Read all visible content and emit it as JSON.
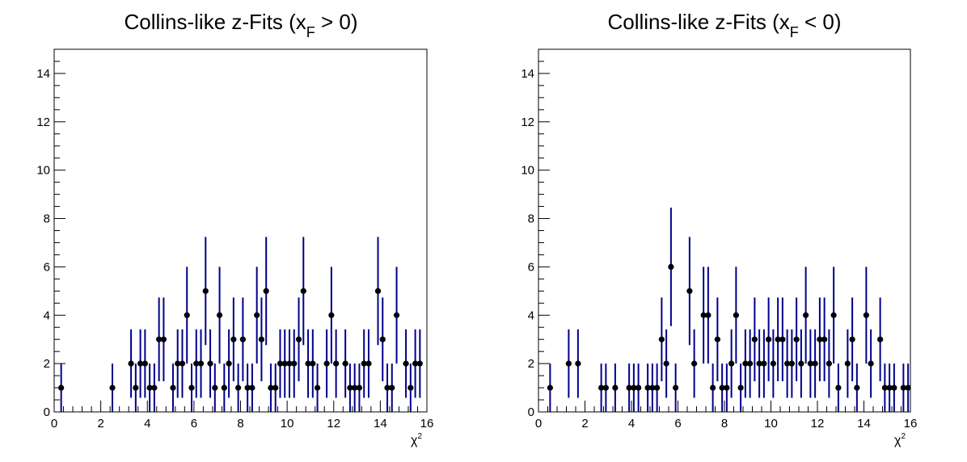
{
  "chart_data": [
    {
      "type": "scatter",
      "title_main": "Collins-like z-Fits (x",
      "title_sub": "F",
      "title_rest": " > 0)",
      "xlabel_main": "χ",
      "xlabel_sup": "2",
      "ylabel": "",
      "xlim": [
        0,
        16
      ],
      "ylim": [
        0,
        15
      ],
      "xticks": [
        "0",
        "2",
        "4",
        "6",
        "8",
        "10",
        "12",
        "14",
        "16"
      ],
      "yticks": [
        "0",
        "2",
        "4",
        "6",
        "8",
        "10",
        "12",
        "14"
      ],
      "series": [
        {
          "marker_color": "#000000",
          "errorbar_color": "#00008b",
          "errors": "sqrt(N)",
          "points": [
            [
              0.3,
              1
            ],
            [
              2.5,
              1
            ],
            [
              3.3,
              2
            ],
            [
              3.5,
              1
            ],
            [
              3.7,
              2
            ],
            [
              3.9,
              2
            ],
            [
              4.1,
              1
            ],
            [
              4.3,
              1
            ],
            [
              4.5,
              3
            ],
            [
              4.7,
              3
            ],
            [
              5.1,
              1
            ],
            [
              5.3,
              2
            ],
            [
              5.5,
              2
            ],
            [
              5.7,
              4
            ],
            [
              5.9,
              1
            ],
            [
              6.1,
              2
            ],
            [
              6.3,
              2
            ],
            [
              6.5,
              5
            ],
            [
              6.7,
              2
            ],
            [
              6.9,
              1
            ],
            [
              7.1,
              4
            ],
            [
              7.3,
              1
            ],
            [
              7.5,
              2
            ],
            [
              7.7,
              3
            ],
            [
              7.9,
              1
            ],
            [
              8.1,
              3
            ],
            [
              8.3,
              1
            ],
            [
              8.5,
              1
            ],
            [
              8.7,
              4
            ],
            [
              8.9,
              3
            ],
            [
              9.1,
              5
            ],
            [
              9.3,
              1
            ],
            [
              9.5,
              1
            ],
            [
              9.7,
              2
            ],
            [
              9.9,
              2
            ],
            [
              10.1,
              2
            ],
            [
              10.3,
              2
            ],
            [
              10.5,
              3
            ],
            [
              10.7,
              5
            ],
            [
              10.9,
              2
            ],
            [
              11.1,
              2
            ],
            [
              11.3,
              1
            ],
            [
              11.7,
              2
            ],
            [
              11.9,
              4
            ],
            [
              12.1,
              2
            ],
            [
              12.5,
              2
            ],
            [
              12.7,
              1
            ],
            [
              12.9,
              1
            ],
            [
              13.1,
              1
            ],
            [
              13.3,
              2
            ],
            [
              13.5,
              2
            ],
            [
              13.9,
              5
            ],
            [
              14.1,
              3
            ],
            [
              14.3,
              1
            ],
            [
              14.5,
              1
            ],
            [
              14.7,
              4
            ],
            [
              15.1,
              2
            ],
            [
              15.3,
              1
            ],
            [
              15.5,
              2
            ],
            [
              15.7,
              2
            ]
          ]
        }
      ]
    },
    {
      "type": "scatter",
      "title_main": "Collins-like z-Fits (x",
      "title_sub": "F",
      "title_rest": " < 0)",
      "xlabel_main": "χ",
      "xlabel_sup": "2",
      "ylabel": "",
      "xlim": [
        0,
        16
      ],
      "ylim": [
        0,
        15
      ],
      "xticks": [
        "0",
        "2",
        "4",
        "6",
        "8",
        "10",
        "12",
        "14",
        "16"
      ],
      "yticks": [
        "0",
        "2",
        "4",
        "6",
        "8",
        "10",
        "12",
        "14"
      ],
      "series": [
        {
          "marker_color": "#000000",
          "errorbar_color": "#00008b",
          "errors": "sqrt(N)",
          "points": [
            [
              0.5,
              1
            ],
            [
              1.3,
              2
            ],
            [
              1.7,
              2
            ],
            [
              2.7,
              1
            ],
            [
              2.9,
              1
            ],
            [
              3.3,
              1
            ],
            [
              3.9,
              1
            ],
            [
              4.1,
              1
            ],
            [
              4.3,
              1
            ],
            [
              4.7,
              1
            ],
            [
              4.9,
              1
            ],
            [
              5.1,
              1
            ],
            [
              5.3,
              3
            ],
            [
              5.5,
              2
            ],
            [
              5.7,
              6
            ],
            [
              5.9,
              1
            ],
            [
              6.5,
              5
            ],
            [
              6.7,
              2
            ],
            [
              7.1,
              4
            ],
            [
              7.3,
              4
            ],
            [
              7.5,
              1
            ],
            [
              7.7,
              3
            ],
            [
              7.9,
              1
            ],
            [
              8.1,
              1
            ],
            [
              8.3,
              2
            ],
            [
              8.5,
              4
            ],
            [
              8.7,
              1
            ],
            [
              8.9,
              2
            ],
            [
              9.1,
              2
            ],
            [
              9.3,
              3
            ],
            [
              9.5,
              2
            ],
            [
              9.7,
              2
            ],
            [
              9.9,
              3
            ],
            [
              10.1,
              2
            ],
            [
              10.3,
              3
            ],
            [
              10.5,
              3
            ],
            [
              10.7,
              2
            ],
            [
              10.9,
              2
            ],
            [
              11.1,
              3
            ],
            [
              11.3,
              2
            ],
            [
              11.5,
              4
            ],
            [
              11.7,
              2
            ],
            [
              11.9,
              2
            ],
            [
              12.1,
              3
            ],
            [
              12.3,
              3
            ],
            [
              12.5,
              2
            ],
            [
              12.7,
              4
            ],
            [
              12.9,
              1
            ],
            [
              13.3,
              2
            ],
            [
              13.5,
              3
            ],
            [
              13.7,
              1
            ],
            [
              14.1,
              4
            ],
            [
              14.3,
              2
            ],
            [
              14.7,
              3
            ],
            [
              14.9,
              1
            ],
            [
              15.1,
              1
            ],
            [
              15.3,
              1
            ],
            [
              15.7,
              1
            ],
            [
              15.9,
              1
            ]
          ]
        }
      ]
    }
  ]
}
